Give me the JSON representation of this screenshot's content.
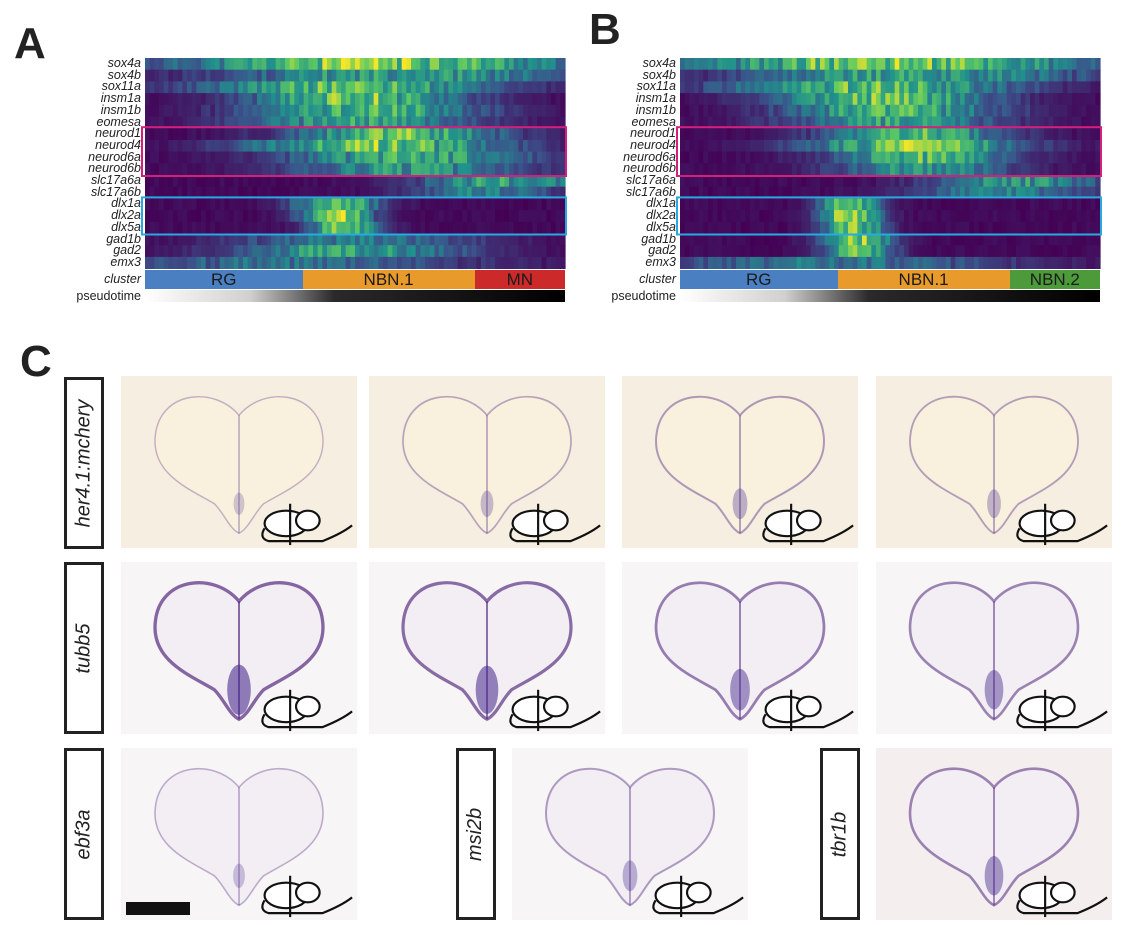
{
  "panel_letters": {
    "a": "A",
    "b": "B",
    "c": "C"
  },
  "panel_a": {
    "genes": [
      "sox4a",
      "sox4b",
      "sox11a",
      "insm1a",
      "insm1b",
      "eomesa",
      "neurod1",
      "neurod4",
      "neurod6a",
      "neurod6b",
      "slc17a6a",
      "slc17a6b",
      "dlx1a",
      "dlx2a",
      "dlx5a",
      "gad1b",
      "gad2",
      "emx3"
    ],
    "cluster_row_label": "cluster",
    "pseudotime_row_label": "pseudotime",
    "clusters": [
      {
        "label": "RG",
        "color": "#4a7fc1",
        "fraction": 0.375
      },
      {
        "label": "NBN.1",
        "color": "#e89a2a",
        "fraction": 0.41
      },
      {
        "label": "MN",
        "color": "#cc2a2a",
        "fraction": 0.215
      }
    ]
  },
  "panel_b": {
    "genes": [
      "sox4a",
      "sox4b",
      "sox11a",
      "insm1a",
      "insm1b",
      "eomesa",
      "neurod1",
      "neurod4",
      "neurod6a",
      "neurod6b",
      "slc17a6a",
      "slc17a6b",
      "dlx1a",
      "dlx2a",
      "dlx5a",
      "gad1b",
      "gad2",
      "emx3"
    ],
    "cluster_row_label": "cluster",
    "pseudotime_row_label": "pseudotime",
    "clusters": [
      {
        "label": "RG",
        "color": "#4a7fc1",
        "fraction": 0.375
      },
      {
        "label": "NBN.1",
        "color": "#e89a2a",
        "fraction": 0.41
      },
      {
        "label": "NBN.2",
        "color": "#4c9a3a",
        "fraction": 0.215
      }
    ]
  },
  "highlight_colors": {
    "neurod_box": "#d4207c",
    "dlx_box": "#27a9e1"
  },
  "panel_c": {
    "row_labels": [
      "her4.1:mchery",
      "tubb5"
    ],
    "bottom_labels": [
      "ebf3a",
      "msi2b",
      "tbr1b"
    ]
  }
}
